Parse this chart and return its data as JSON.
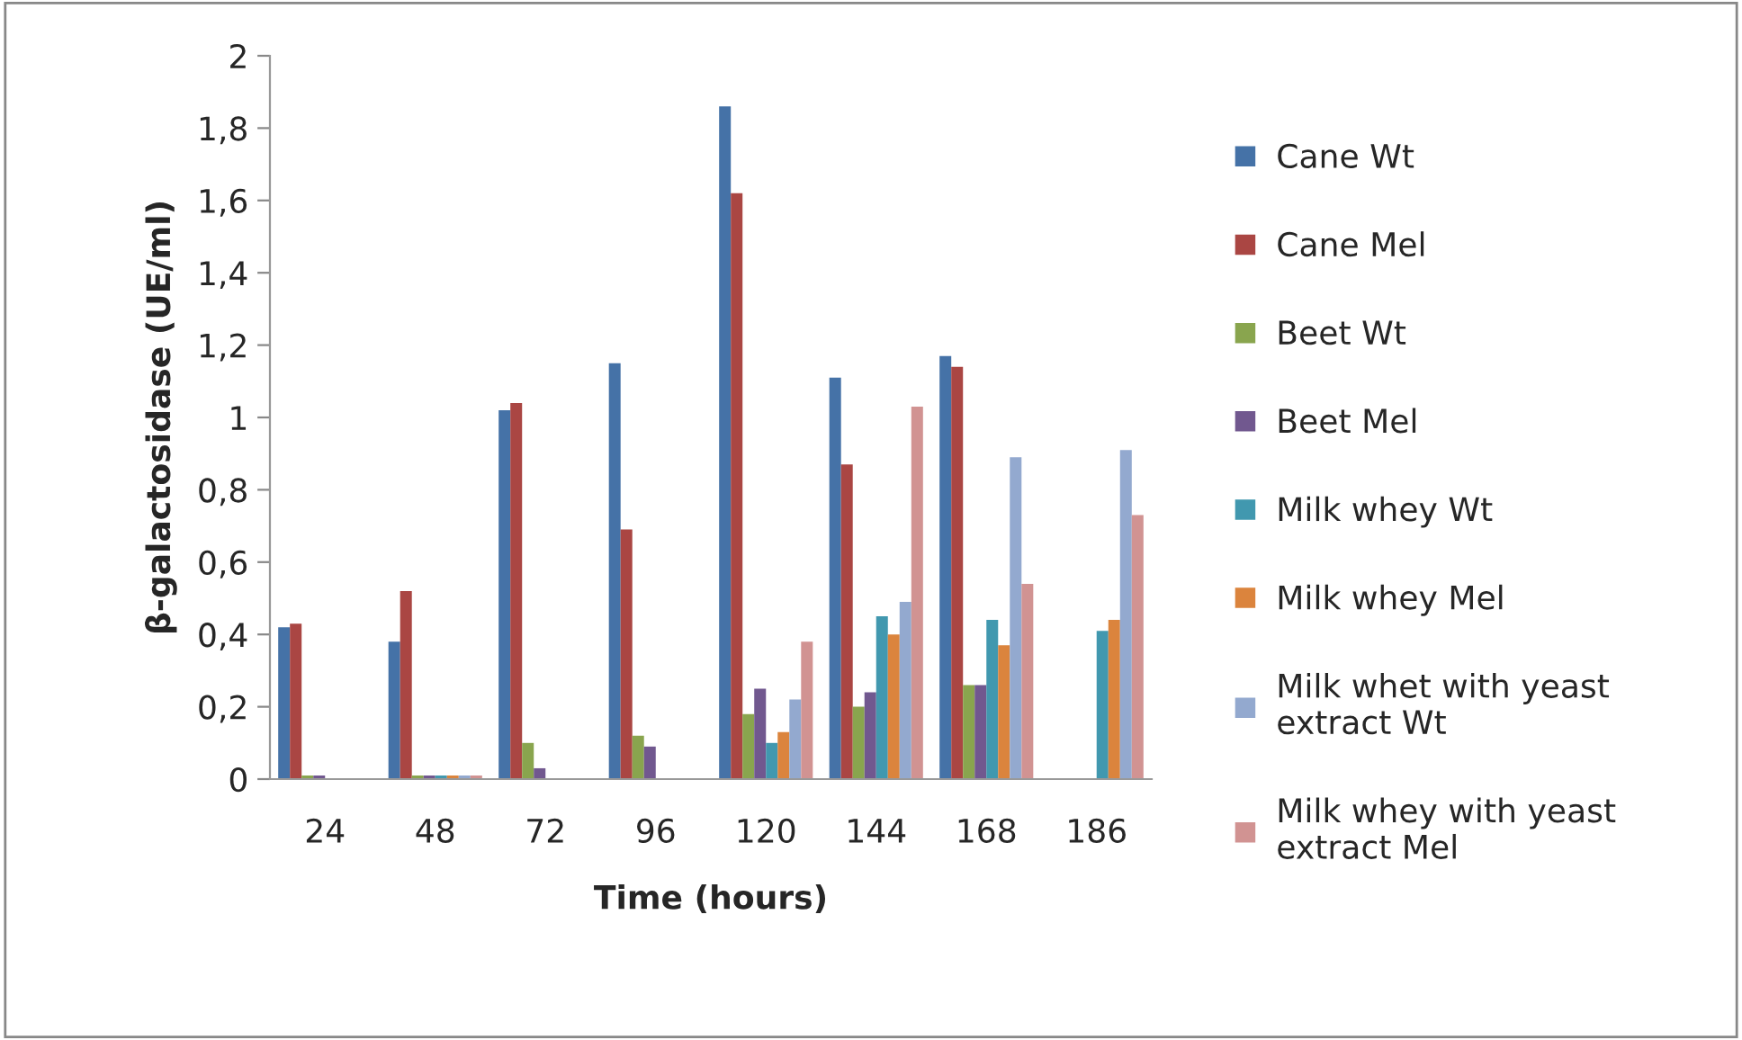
{
  "chart_data": {
    "type": "bar",
    "xlabel": "Time (hours)",
    "ylabel": "β-galactosidase (UE/ml)",
    "categories": [
      "24",
      "48",
      "72",
      "96",
      "120",
      "144",
      "168",
      "186"
    ],
    "ylim": [
      0,
      2
    ],
    "yticks": [
      0,
      {
        "value": 0.2,
        "label": "0,2"
      },
      {
        "value": 0.4,
        "label": "0,4"
      },
      {
        "value": 0.6,
        "label": "0,6"
      },
      {
        "value": 0.8,
        "label": "0,8"
      },
      1,
      {
        "value": 1.2,
        "label": "1,2"
      },
      {
        "value": 1.4,
        "label": "1,4"
      },
      {
        "value": 1.6,
        "label": "1,6"
      },
      {
        "value": 1.8,
        "label": "1,8"
      },
      2
    ],
    "grid": false,
    "legend": "right",
    "series": [
      {
        "name": "Cane Wt",
        "color": "#4572a7",
        "values": [
          0.42,
          0.38,
          1.02,
          1.15,
          1.86,
          1.11,
          1.17,
          null
        ]
      },
      {
        "name": "Cane Mel",
        "color": "#aa4643",
        "values": [
          0.43,
          0.52,
          1.04,
          0.69,
          1.62,
          0.87,
          1.14,
          null
        ]
      },
      {
        "name": "Beet Wt",
        "color": "#89a54e",
        "values": [
          0.01,
          0.01,
          0.1,
          0.12,
          0.18,
          0.2,
          0.26,
          null
        ]
      },
      {
        "name": "Beet Mel",
        "color": "#71588f",
        "values": [
          0.01,
          0.01,
          0.03,
          0.09,
          0.25,
          0.24,
          0.26,
          null
        ]
      },
      {
        "name": "Milk whey Wt",
        "color": "#4198af",
        "values": [
          null,
          0.01,
          null,
          null,
          0.1,
          0.45,
          0.44,
          0.41
        ]
      },
      {
        "name": "Milk whey Mel",
        "color": "#db843d",
        "values": [
          null,
          0.01,
          null,
          null,
          0.13,
          0.4,
          0.37,
          0.44
        ]
      },
      {
        "name": "Milk whet with yeast\nextract Wt",
        "color": "#93a9cf",
        "values": [
          null,
          0.01,
          null,
          null,
          0.22,
          0.49,
          0.89,
          0.91
        ]
      },
      {
        "name": "Milk whey with yeast\nextract Mel",
        "color": "#d19392",
        "values": [
          null,
          0.01,
          null,
          null,
          0.38,
          1.03,
          0.54,
          0.73
        ]
      }
    ]
  }
}
